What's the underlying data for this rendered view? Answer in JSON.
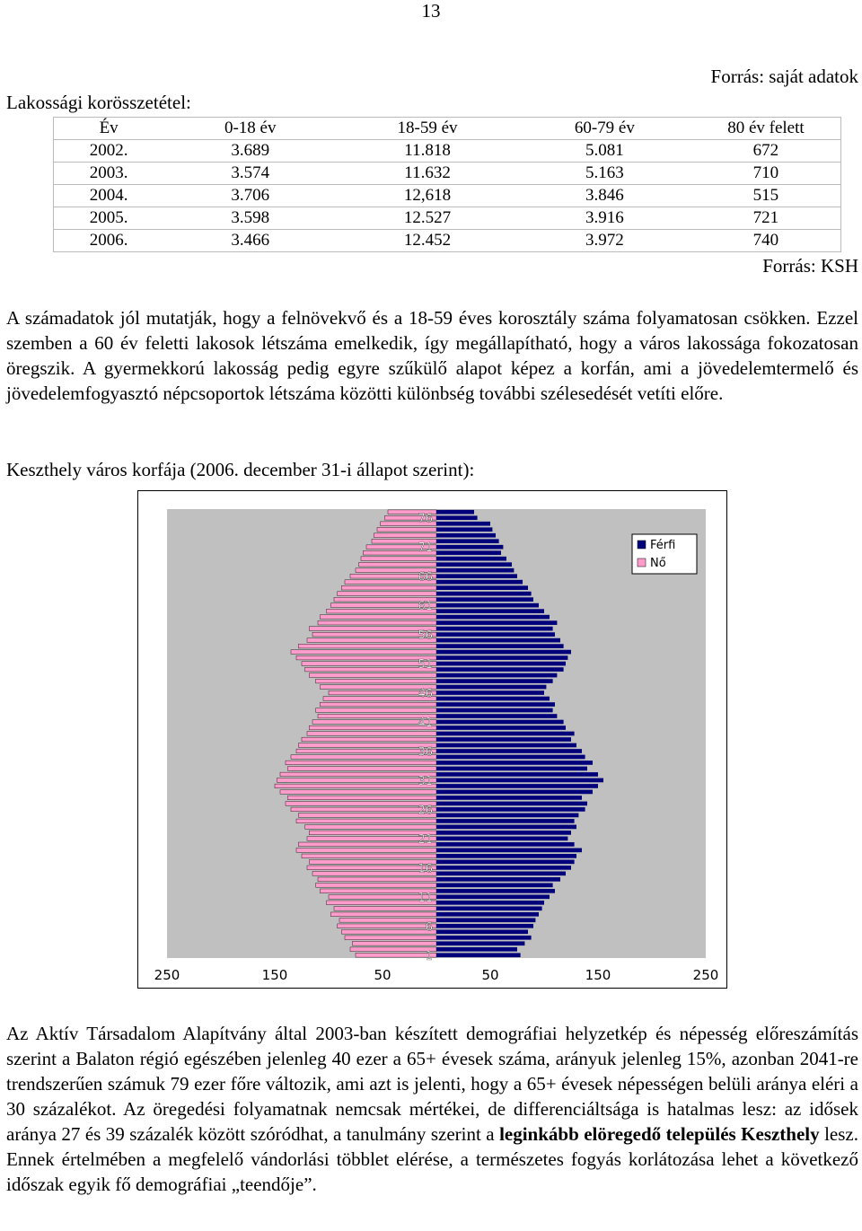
{
  "page_number": "13",
  "source_own": "Forrás: saját adatok",
  "table_title": "Lakossági korösszetétel:",
  "table": {
    "headers": [
      "Év",
      "0-18 év",
      "18-59 év",
      "60-79 év",
      "80 év felett"
    ],
    "rows": [
      [
        "2002.",
        "3.689",
        "11.818",
        "5.081",
        "672"
      ],
      [
        "2003.",
        "3.574",
        "11.632",
        "5.163",
        "710"
      ],
      [
        "2004.",
        "3.706",
        "12,618",
        "3.846",
        "515"
      ],
      [
        "2005.",
        "3.598",
        "12.527",
        "3.916",
        "721"
      ],
      [
        "2006.",
        "3.466",
        "12.452",
        "3.972",
        "740"
      ]
    ]
  },
  "source_ksh": "Forrás: KSH",
  "paragraph1": "A számadatok jól mutatják, hogy a felnövekvő és a 18-59 éves korosztály száma folyamatosan csökken. Ezzel szemben a 60 év feletti lakosok létszáma emelkedik, így megállapítható, hogy a város lakossága fokozatosan öregszik. A gyermekkorú lakosság pedig egyre szűkülő alapot képez a korfán, ami a jövedelemtermelő és jövedelemfogyasztó népcsoportok létszáma közötti különbség további szélesedését vetíti előre.",
  "chart_caption": "Keszthely város korfája (2006. december 31-i állapot szerint):",
  "chart_data": {
    "type": "bar",
    "orientation": "horizontal-population-pyramid",
    "y_tick_labels": [
      "76",
      "71",
      "66",
      "61",
      "56",
      "51",
      "46",
      "41",
      "36",
      "31",
      "26",
      "21",
      "16",
      "11",
      "6",
      "1"
    ],
    "x_tick_labels": [
      "250",
      "150",
      "50",
      "50",
      "150",
      "250"
    ],
    "xlim": [
      -250,
      250
    ],
    "legend_position": "top-right",
    "grid": false,
    "colors": {
      "ferfi": "#00007b",
      "no": "#ff9ccc",
      "plot_bg": "#c0c0c0"
    },
    "ages": [
      1,
      2,
      3,
      4,
      5,
      6,
      7,
      8,
      9,
      10,
      11,
      12,
      13,
      14,
      15,
      16,
      17,
      18,
      19,
      20,
      21,
      22,
      23,
      24,
      25,
      26,
      27,
      28,
      29,
      30,
      31,
      32,
      33,
      34,
      35,
      36,
      37,
      38,
      39,
      40,
      41,
      42,
      43,
      44,
      45,
      46,
      47,
      48,
      49,
      50,
      51,
      52,
      53,
      54,
      55,
      56,
      57,
      58,
      59,
      60,
      61,
      62,
      63,
      64,
      65,
      66,
      67,
      68,
      69,
      70,
      71,
      72,
      73,
      74,
      75,
      76,
      77
    ],
    "series": [
      {
        "name": "Férfi",
        "values": [
          78,
          75,
          82,
          88,
          85,
          90,
          92,
          95,
          98,
          100,
          105,
          110,
          108,
          115,
          120,
          125,
          128,
          130,
          135,
          128,
          122,
          125,
          130,
          128,
          132,
          138,
          140,
          135,
          145,
          150,
          155,
          150,
          140,
          145,
          138,
          135,
          130,
          125,
          128,
          120,
          118,
          112,
          108,
          110,
          105,
          100,
          102,
          108,
          112,
          118,
          120,
          122,
          125,
          118,
          115,
          110,
          108,
          112,
          105,
          100,
          95,
          90,
          88,
          85,
          80,
          75,
          72,
          70,
          65,
          60,
          62,
          58,
          55,
          52,
          50,
          38,
          35
        ]
      },
      {
        "name": "Nő",
        "values": [
          75,
          80,
          78,
          85,
          88,
          92,
          90,
          98,
          95,
          102,
          100,
          108,
          112,
          110,
          115,
          120,
          118,
          125,
          130,
          128,
          120,
          118,
          122,
          130,
          128,
          135,
          140,
          138,
          145,
          150,
          148,
          145,
          138,
          140,
          135,
          130,
          128,
          125,
          120,
          118,
          115,
          110,
          112,
          108,
          105,
          100,
          108,
          112,
          118,
          122,
          125,
          130,
          135,
          128,
          120,
          115,
          118,
          110,
          108,
          102,
          98,
          95,
          92,
          88,
          85,
          80,
          75,
          72,
          70,
          68,
          65,
          60,
          58,
          55,
          52,
          48,
          45
        ]
      }
    ]
  },
  "paragraph2": {
    "before": "Az Aktív Társadalom Alapítvány által 2003-ban készített demográfiai helyzetkép és népesség előreszámítás szerint a Balaton régió egészében jelenleg 40 ezer a 65+ évesek száma, arányuk jelenleg 15%, azonban 2041-re trendszerűen számuk 79 ezer főre változik, ami azt is jelenti, hogy a 65+ évesek népességen belüli aránya eléri a 30 százalékot. Az öregedési folyamatnak nemcsak mértékei, de differenciáltsága is hatalmas lesz: az idősek aránya 27 és 39 százalék között szóródhat, a tanulmány szerint a ",
    "bold": "leginkább elöregedő település Keszthely",
    "after": " lesz. Ennek értelmében a megfelelő vándorlási többlet elérése, a természetes fogyás korlátozása lehet a következő időszak egyik fő demográfiai „teendője”."
  }
}
